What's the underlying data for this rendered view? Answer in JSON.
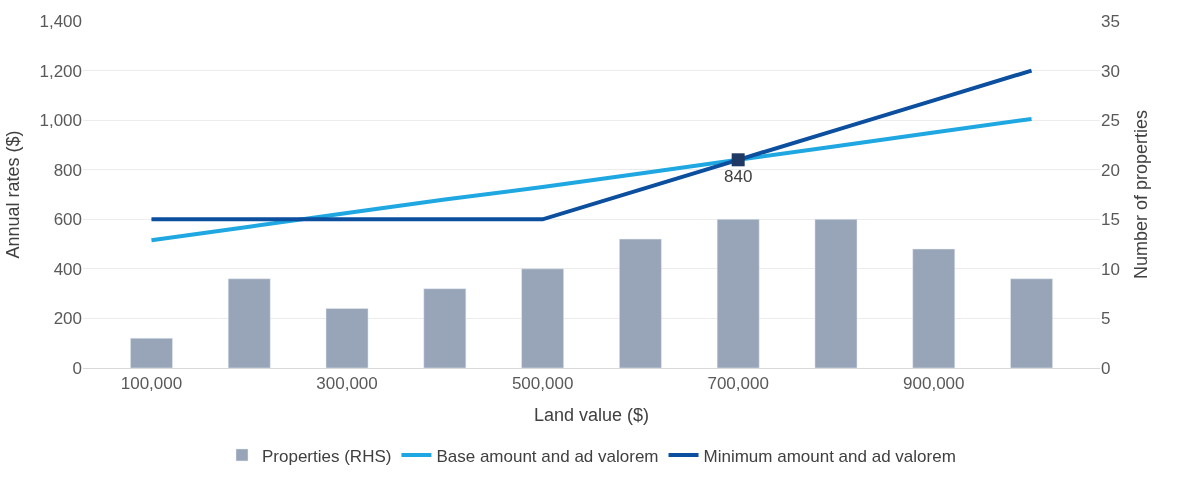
{
  "chart_data": {
    "type": "line",
    "xlabel": "Land value ($)",
    "ylabel": "Annual rates ($)",
    "y2label": "Number of properties",
    "x": [
      100000,
      200000,
      300000,
      400000,
      500000,
      600000,
      700000,
      800000,
      900000,
      1000000
    ],
    "series": [
      {
        "name": "Properties (RHS)",
        "type": "bar",
        "axis": "y2",
        "color": "#98a4b8",
        "values": [
          3,
          9,
          6,
          8,
          10,
          13,
          15,
          15,
          12,
          9
        ]
      },
      {
        "name": "Base amount and ad valorem",
        "color": "#1ea7e1",
        "values": [
          515,
          570,
          625,
          680,
          730,
          785,
          840,
          895,
          950,
          1005
        ]
      },
      {
        "name": "Minimum amount and ad valorem",
        "color": "#0b4f9e",
        "values": [
          600,
          600,
          600,
          600,
          600,
          720,
          840,
          960,
          1080,
          1200
        ]
      },
      {
        "type": "scatter",
        "marker": "square",
        "color": "#1f3864",
        "x": [
          700000
        ],
        "values": [
          840
        ],
        "value_labels": [
          "840"
        ]
      }
    ],
    "xlim": [
      30000,
      1070000
    ],
    "xticks": [
      {
        "value": 100000,
        "label": "100,000"
      },
      {
        "value": 300000,
        "label": "300,000"
      },
      {
        "value": 500000,
        "label": "500,000"
      },
      {
        "value": 700000,
        "label": "700,000"
      },
      {
        "value": 900000,
        "label": "900,000"
      }
    ],
    "ylim": [
      0,
      1400
    ],
    "yticks": [
      0,
      {
        "value": 200,
        "label": "200"
      },
      {
        "value": 400,
        "label": "400"
      },
      {
        "value": 600,
        "label": "600"
      },
      {
        "value": 800,
        "label": "800"
      },
      {
        "value": 1000,
        "label": "1,000"
      },
      {
        "value": 1200,
        "label": "1,200"
      },
      {
        "value": 1400,
        "label": "1,400"
      }
    ],
    "y2lim": [
      0,
      35
    ],
    "y2ticks": [
      0,
      5,
      10,
      15,
      20,
      25,
      30,
      35
    ],
    "grid": "y",
    "legend": "bottom"
  }
}
